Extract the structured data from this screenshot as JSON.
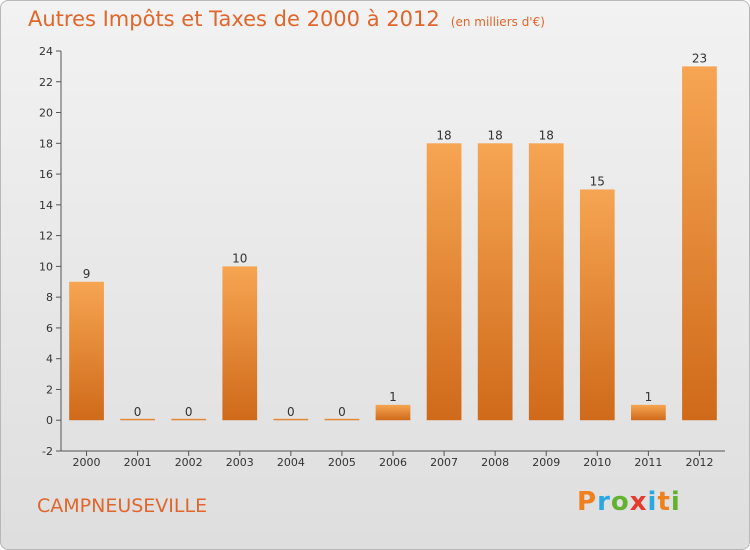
{
  "header": {
    "title": "Autres Impôts et Taxes de 2000 à 2012",
    "unit": "(en milliers d'€)"
  },
  "commune": "CAMPNEUSEVILLE",
  "logo": {
    "text": "Proxiti",
    "letters": [
      "P",
      "r",
      "o",
      "x",
      "i",
      "t",
      "i"
    ],
    "colors": [
      "#f07f1e",
      "#2aa9e0",
      "#63b12f",
      "#e53a2e",
      "#2aa9e0",
      "#f07f1e",
      "#63b12f"
    ]
  },
  "chart_data": {
    "type": "bar",
    "title": "Autres Impôts et Taxes de 2000 à 2012",
    "categories": [
      "2000",
      "2001",
      "2002",
      "2003",
      "2004",
      "2005",
      "2006",
      "2007",
      "2008",
      "2009",
      "2010",
      "2011",
      "2012"
    ],
    "values": [
      9,
      0,
      0,
      10,
      0,
      0,
      1,
      18,
      18,
      18,
      15,
      1,
      23
    ],
    "ylim": [
      -2,
      24
    ],
    "yticks": [
      -2,
      0,
      2,
      4,
      6,
      8,
      10,
      12,
      14,
      16,
      18,
      20,
      22,
      24
    ],
    "grid": false,
    "bar_color": "#ee8a3a",
    "text_color": "#e0662c"
  }
}
